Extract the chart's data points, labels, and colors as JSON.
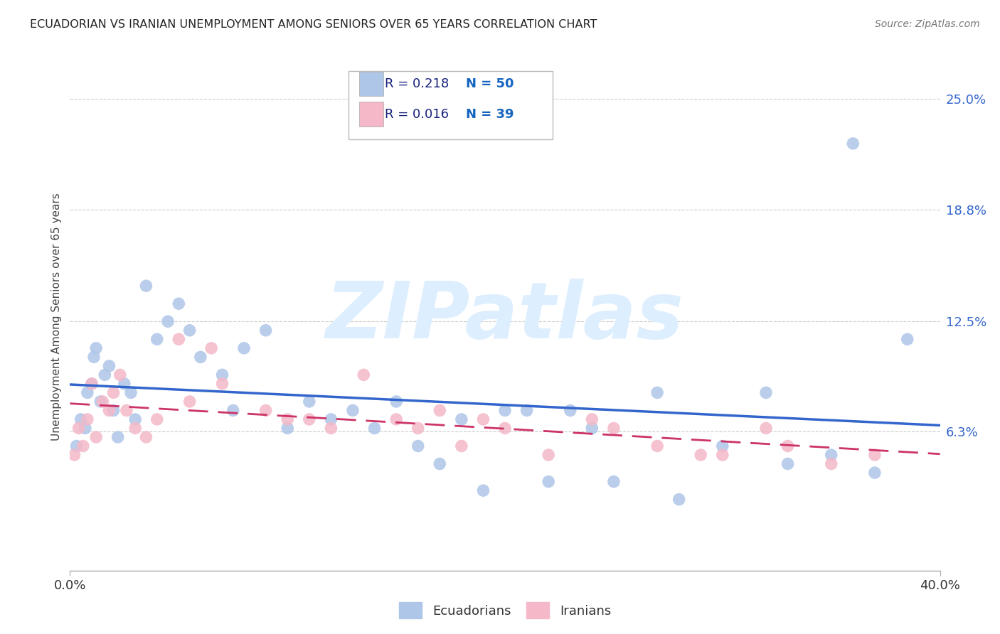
{
  "title": "ECUADORIAN VS IRANIAN UNEMPLOYMENT AMONG SENIORS OVER 65 YEARS CORRELATION CHART",
  "source": "Source: ZipAtlas.com",
  "ylabel": "Unemployment Among Seniors over 65 years",
  "xlim": [
    0.0,
    40.0
  ],
  "ylim": [
    -1.5,
    27.0
  ],
  "yticks": [
    6.3,
    12.5,
    18.8,
    25.0
  ],
  "ytick_labels": [
    "6.3%",
    "12.5%",
    "18.8%",
    "25.0%"
  ],
  "blue_R": 0.218,
  "blue_N": 50,
  "pink_R": 0.016,
  "pink_N": 39,
  "blue_color": "#aec6e8",
  "blue_line_color": "#3366cc",
  "pink_color": "#f4b8c8",
  "pink_line_color": "#cc3366",
  "watermark_color": "#ddeeff",
  "legend_label_blue": "Ecuadorians",
  "legend_label_pink": "Iranians",
  "blue_scatter_x": [
    0.3,
    0.5,
    0.7,
    0.8,
    1.0,
    1.1,
    1.2,
    1.4,
    1.6,
    1.8,
    2.0,
    2.2,
    2.5,
    2.8,
    3.0,
    3.5,
    4.0,
    4.5,
    5.0,
    5.5,
    6.0,
    7.0,
    7.5,
    8.0,
    9.0,
    10.0,
    11.0,
    12.0,
    13.0,
    14.0,
    15.0,
    16.0,
    17.0,
    18.0,
    19.0,
    20.0,
    21.0,
    22.0,
    23.0,
    24.0,
    25.0,
    27.0,
    28.0,
    30.0,
    32.0,
    33.0,
    35.0,
    37.0,
    38.5,
    36.0
  ],
  "blue_scatter_y": [
    5.5,
    7.0,
    6.5,
    8.5,
    9.0,
    10.5,
    11.0,
    8.0,
    9.5,
    10.0,
    7.5,
    6.0,
    9.0,
    8.5,
    7.0,
    14.5,
    11.5,
    12.5,
    13.5,
    12.0,
    10.5,
    9.5,
    7.5,
    11.0,
    12.0,
    6.5,
    8.0,
    7.0,
    7.5,
    6.5,
    8.0,
    5.5,
    4.5,
    7.0,
    3.0,
    7.5,
    7.5,
    3.5,
    7.5,
    6.5,
    3.5,
    8.5,
    2.5,
    5.5,
    8.5,
    4.5,
    5.0,
    4.0,
    11.5,
    22.5
  ],
  "pink_scatter_x": [
    0.2,
    0.4,
    0.6,
    0.8,
    1.0,
    1.2,
    1.5,
    1.8,
    2.0,
    2.3,
    2.6,
    3.0,
    3.5,
    4.0,
    5.0,
    5.5,
    6.5,
    7.0,
    9.0,
    10.0,
    11.0,
    12.0,
    13.5,
    15.0,
    16.0,
    17.0,
    18.0,
    19.0,
    20.0,
    22.0,
    24.0,
    25.0,
    27.0,
    29.0,
    30.0,
    32.0,
    33.0,
    35.0,
    37.0
  ],
  "pink_scatter_y": [
    5.0,
    6.5,
    5.5,
    7.0,
    9.0,
    6.0,
    8.0,
    7.5,
    8.5,
    9.5,
    7.5,
    6.5,
    6.0,
    7.0,
    11.5,
    8.0,
    11.0,
    9.0,
    7.5,
    7.0,
    7.0,
    6.5,
    9.5,
    7.0,
    6.5,
    7.5,
    5.5,
    7.0,
    6.5,
    5.0,
    7.0,
    6.5,
    5.5,
    5.0,
    5.0,
    6.5,
    5.5,
    4.5,
    5.0
  ]
}
